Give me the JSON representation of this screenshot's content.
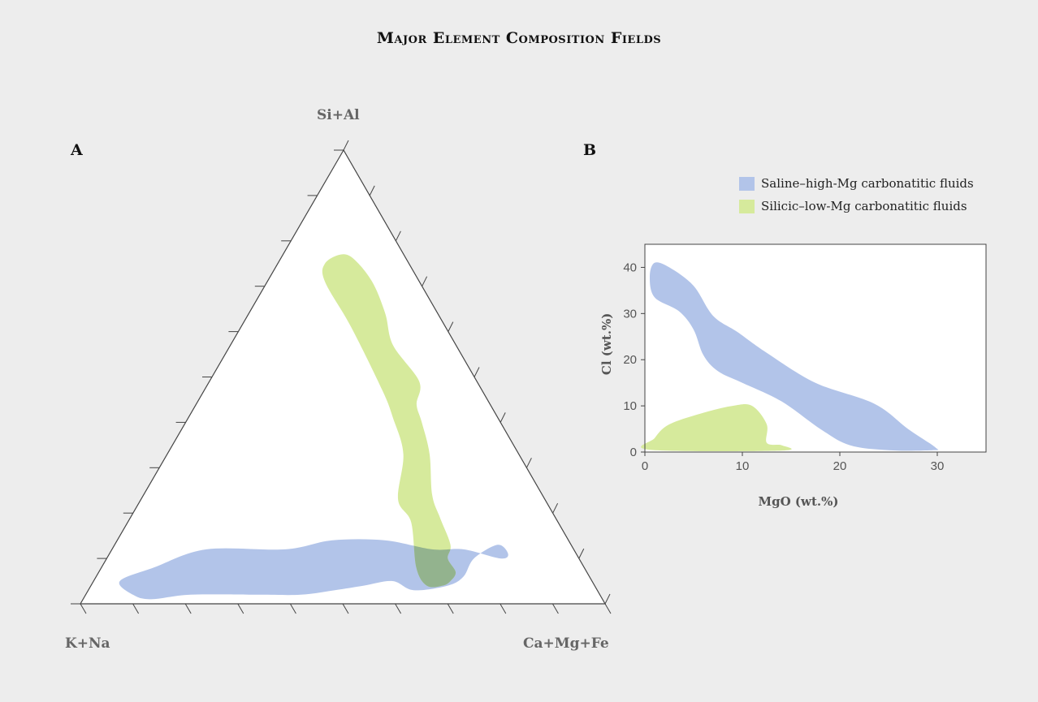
{
  "title": "Major Element Composition Fields",
  "colors": {
    "saline": "#b2c4e9",
    "silicic": "#d6ea9c",
    "overlap": "#93b38e",
    "frame": "#444444",
    "background": "#ededed"
  },
  "chart_data": [
    {
      "panel": "A",
      "type": "ternary",
      "apexes": {
        "top": "Si+Al",
        "left": "K+Na",
        "right": "Ca+Mg+Fe"
      },
      "ticks_per_edge": 11,
      "regions": [
        {
          "name": "Saline–high-Mg carbonatitic fluids",
          "color_key": "saline",
          "points": [
            [
              0.08,
              0.82,
              0.1
            ],
            [
              0.05,
              0.9,
              0.05
            ],
            [
              0.02,
              0.89,
              0.09
            ],
            [
              0.01,
              0.86,
              0.13
            ],
            [
              0.02,
              0.78,
              0.2
            ],
            [
              0.02,
              0.65,
              0.33
            ],
            [
              0.02,
              0.57,
              0.41
            ],
            [
              0.03,
              0.5,
              0.47
            ],
            [
              0.04,
              0.44,
              0.52
            ],
            [
              0.05,
              0.38,
              0.57
            ],
            [
              0.03,
              0.35,
              0.62
            ],
            [
              0.04,
              0.28,
              0.68
            ],
            [
              0.06,
              0.24,
              0.7
            ],
            [
              0.1,
              0.2,
              0.7
            ],
            [
              0.13,
              0.14,
              0.73
            ],
            [
              0.11,
              0.13,
              0.76
            ],
            [
              0.1,
              0.15,
              0.75
            ],
            [
              0.12,
              0.21,
              0.67
            ],
            [
              0.12,
              0.27,
              0.61
            ],
            [
              0.14,
              0.35,
              0.51
            ],
            [
              0.14,
              0.45,
              0.41
            ],
            [
              0.12,
              0.55,
              0.33
            ],
            [
              0.12,
              0.7,
              0.18
            ],
            [
              0.08,
              0.82,
              0.1
            ]
          ]
        },
        {
          "name": "Silicic–low-Mg carbonatitic fluids",
          "color_key": "silicic",
          "points": [
            [
              0.77,
              0.12,
              0.11
            ],
            [
              0.75,
              0.16,
              0.09
            ],
            [
              0.71,
              0.18,
              0.11
            ],
            [
              0.61,
              0.18,
              0.21
            ],
            [
              0.47,
              0.19,
              0.34
            ],
            [
              0.41,
              0.2,
              0.39
            ],
            [
              0.33,
              0.22,
              0.45
            ],
            [
              0.23,
              0.28,
              0.49
            ],
            [
              0.18,
              0.28,
              0.54
            ],
            [
              0.08,
              0.32,
              0.6
            ],
            [
              0.04,
              0.32,
              0.64
            ],
            [
              0.04,
              0.29,
              0.67
            ],
            [
              0.05,
              0.27,
              0.68
            ],
            [
              0.07,
              0.25,
              0.68
            ],
            [
              0.1,
              0.25,
              0.65
            ],
            [
              0.13,
              0.23,
              0.64
            ],
            [
              0.19,
              0.22,
              0.59
            ],
            [
              0.24,
              0.21,
              0.55
            ],
            [
              0.33,
              0.17,
              0.5
            ],
            [
              0.4,
              0.15,
              0.45
            ],
            [
              0.44,
              0.14,
              0.42
            ],
            [
              0.49,
              0.11,
              0.4
            ],
            [
              0.57,
              0.12,
              0.31
            ],
            [
              0.64,
              0.1,
              0.26
            ],
            [
              0.71,
              0.09,
              0.2
            ],
            [
              0.76,
              0.1,
              0.14
            ],
            [
              0.77,
              0.12,
              0.11
            ]
          ]
        }
      ]
    },
    {
      "panel": "B",
      "type": "area",
      "xlabel": "MgO (wt.%)",
      "ylabel": "Cl (wt.%)",
      "xlim": [
        0,
        35
      ],
      "ylim": [
        0,
        45
      ],
      "xticks": [
        0,
        10,
        20,
        30
      ],
      "yticks": [
        0,
        10,
        20,
        30,
        40
      ],
      "grid": false,
      "legend_placement": "top-right",
      "series": [
        {
          "name": "Saline–high-Mg carbonatitic fluids",
          "color_key": "saline",
          "points": [
            [
              1.0,
              41.0
            ],
            [
              0.5,
              38.0
            ],
            [
              1.0,
              33.5
            ],
            [
              3.5,
              30.5
            ],
            [
              5.0,
              26.5
            ],
            [
              6.0,
              21.0
            ],
            [
              7.5,
              17.5
            ],
            [
              10.0,
              15.0
            ],
            [
              14.0,
              11.0
            ],
            [
              18.0,
              5.0
            ],
            [
              21.0,
              1.5
            ],
            [
              25.0,
              0.4
            ],
            [
              29.5,
              0.4
            ],
            [
              29.8,
              1.0
            ],
            [
              27.0,
              5.0
            ],
            [
              23.5,
              10.5
            ],
            [
              17.5,
              15.0
            ],
            [
              12.5,
              21.5
            ],
            [
              9.5,
              26.0
            ],
            [
              7.0,
              29.5
            ],
            [
              5.0,
              36.0
            ],
            [
              2.5,
              40.0
            ],
            [
              1.0,
              41.0
            ]
          ]
        },
        {
          "name": "Silicic–low-Mg carbonatitic fluids",
          "color_key": "silicic",
          "points": [
            [
              0.5,
              0.5
            ],
            [
              1.0,
              3.0
            ],
            [
              2.5,
              6.0
            ],
            [
              6.0,
              8.5
            ],
            [
              9.0,
              10.0
            ],
            [
              11.0,
              10.0
            ],
            [
              12.5,
              6.0
            ],
            [
              12.5,
              2.0
            ],
            [
              14.0,
              1.5
            ],
            [
              14.0,
              0.3
            ],
            [
              0.5,
              0.5
            ]
          ]
        }
      ]
    }
  ]
}
